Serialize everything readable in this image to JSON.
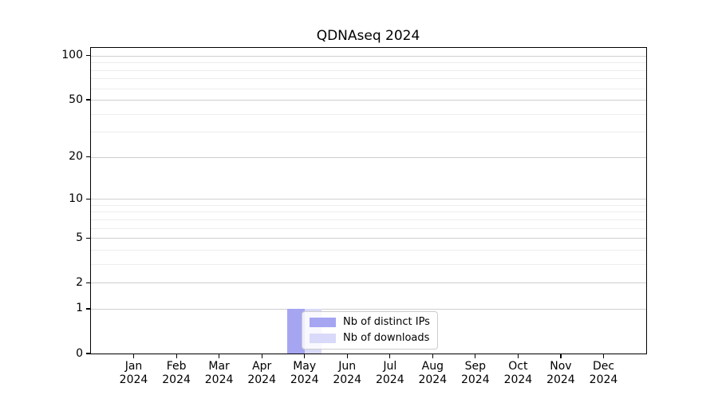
{
  "chart_data": {
    "type": "bar",
    "title": "QDNAseq 2024",
    "categories": [
      "Jan",
      "Feb",
      "Mar",
      "Apr",
      "May",
      "Jun",
      "Jul",
      "Aug",
      "Sep",
      "Oct",
      "Nov",
      "Dec"
    ],
    "year_label": "2024",
    "series": [
      {
        "name": "Nb of distinct IPs",
        "color": "#a5a5f2",
        "values": [
          0,
          0,
          0,
          0,
          1,
          0,
          0,
          0,
          0,
          0,
          0,
          0
        ]
      },
      {
        "name": "Nb of downloads",
        "color": "#d9d9f9",
        "values": [
          0,
          0,
          0,
          0,
          1,
          0,
          0,
          0,
          0,
          0,
          0,
          0
        ]
      }
    ],
    "yscale": "log1p",
    "ylim": [
      0,
      113
    ],
    "yticks": [
      0,
      1,
      2,
      5,
      10,
      20,
      50,
      100
    ],
    "minor_gridlines": [
      3,
      4,
      6,
      7,
      8,
      9,
      30,
      40,
      60,
      70,
      80,
      90
    ],
    "xlabel": "",
    "ylabel": "",
    "grid": "horizontal",
    "legend_position": "inside-bottom-center",
    "colors": {
      "axis": "#000000",
      "grid_major": "#cfcfcf",
      "grid_minor": "#ededed",
      "background": "#ffffff",
      "legend_border": "#cccccc"
    }
  }
}
